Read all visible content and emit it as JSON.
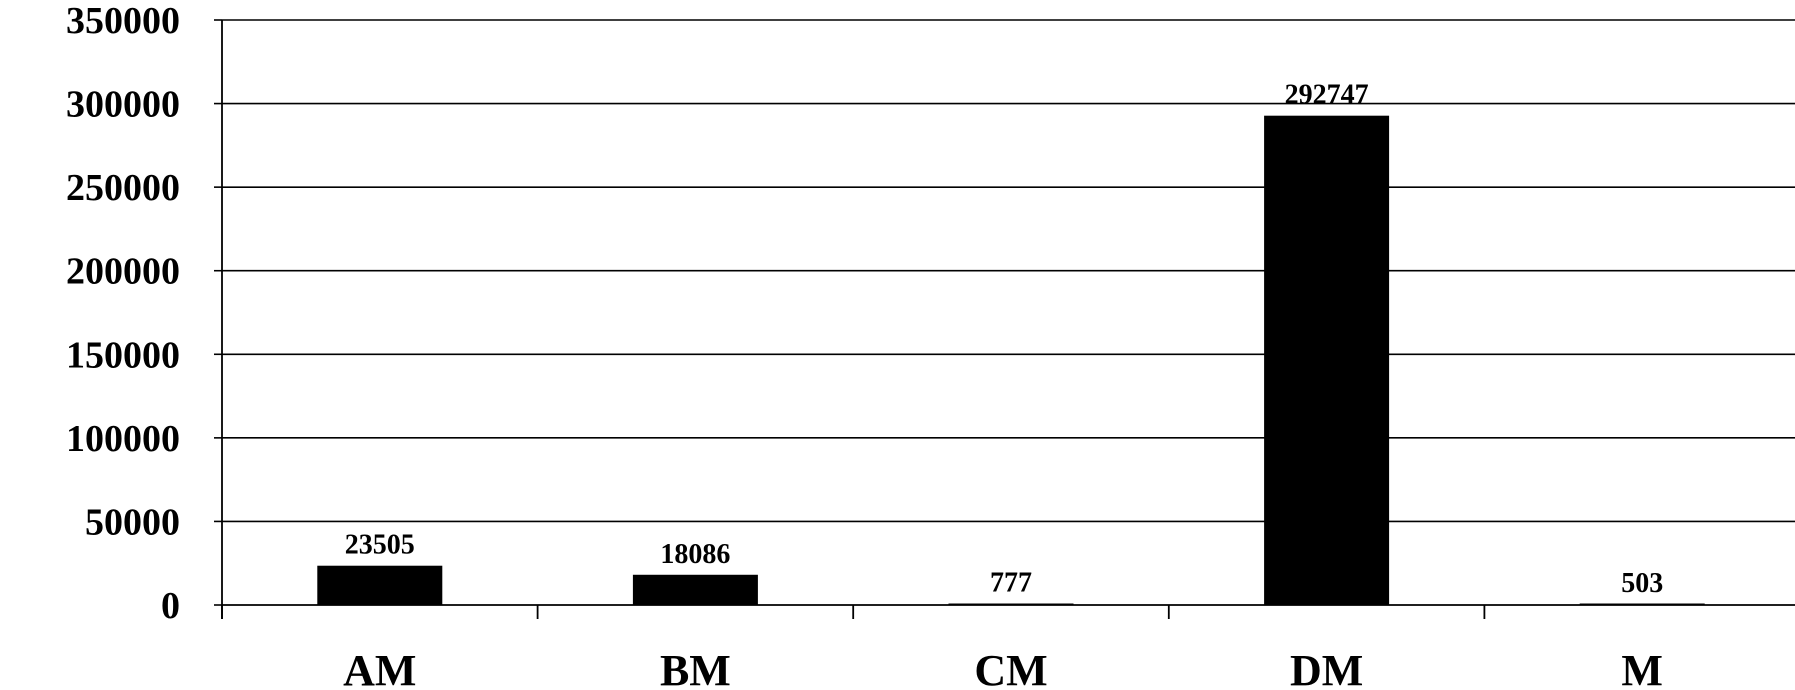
{
  "chart_data": {
    "type": "bar",
    "categories": [
      "AM",
      "BM",
      "CM",
      "DM",
      "M"
    ],
    "values": [
      23505,
      18086,
      777,
      292747,
      503
    ],
    "data_labels": [
      "23505",
      "18086",
      "777",
      "292747",
      "503"
    ],
    "title": "",
    "xlabel": "",
    "ylabel": "",
    "ylim": [
      0,
      350000
    ],
    "yticks": [
      0,
      50000,
      100000,
      150000,
      200000,
      250000,
      300000,
      350000
    ],
    "ytick_labels": [
      "0",
      "50000",
      "100000",
      "150000",
      "200000",
      "250000",
      "300000",
      "350000"
    ],
    "grid": true,
    "legend": "none",
    "bar_color": "#000000"
  }
}
